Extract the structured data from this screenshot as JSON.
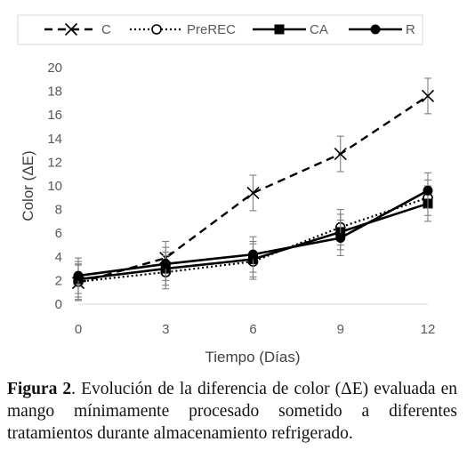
{
  "chart_data": {
    "type": "line",
    "xlabel": "Tiempo (Días)",
    "ylabel": "Color (ΔE)",
    "x": [
      0,
      3,
      6,
      9,
      12
    ],
    "xticks": [
      "0",
      "3",
      "6",
      "9",
      "12"
    ],
    "ylim": [
      0,
      20
    ],
    "yticks": [
      "0",
      "2",
      "4",
      "6",
      "8",
      "10",
      "12",
      "14",
      "16",
      "18",
      "20"
    ],
    "grid": false,
    "legend_position": "top",
    "series": [
      {
        "name": "C",
        "style": "dashed",
        "marker": "x",
        "color": "#000000",
        "values": [
          1.8,
          3.9,
          9.4,
          12.7,
          17.6
        ],
        "errors": [
          1.5,
          1.4,
          1.5,
          1.5,
          1.5
        ]
      },
      {
        "name": "PreREC",
        "style": "dotted",
        "marker": "open-circle",
        "color": "#000000",
        "values": [
          1.9,
          2.7,
          3.6,
          6.5,
          9.0
        ],
        "errors": [
          1.5,
          1.4,
          1.5,
          1.5,
          1.5
        ]
      },
      {
        "name": "CA",
        "style": "solid",
        "marker": "square",
        "color": "#000000",
        "values": [
          2.1,
          3.0,
          3.8,
          6.1,
          8.5
        ],
        "errors": [
          1.5,
          1.4,
          1.5,
          1.5,
          1.5
        ]
      },
      {
        "name": "R",
        "style": "solid",
        "marker": "filled-circle",
        "color": "#000000",
        "values": [
          2.4,
          3.4,
          4.2,
          5.6,
          9.6
        ],
        "errors": [
          1.5,
          1.4,
          1.5,
          1.5,
          1.5
        ]
      }
    ]
  },
  "caption": {
    "label": "Figura 2",
    "text": ". Evolución de la diferencia de color (ΔE) evaluada en mango mínimamente procesado sometido a diferentes tratamientos durante almacenamiento refrigerado."
  }
}
